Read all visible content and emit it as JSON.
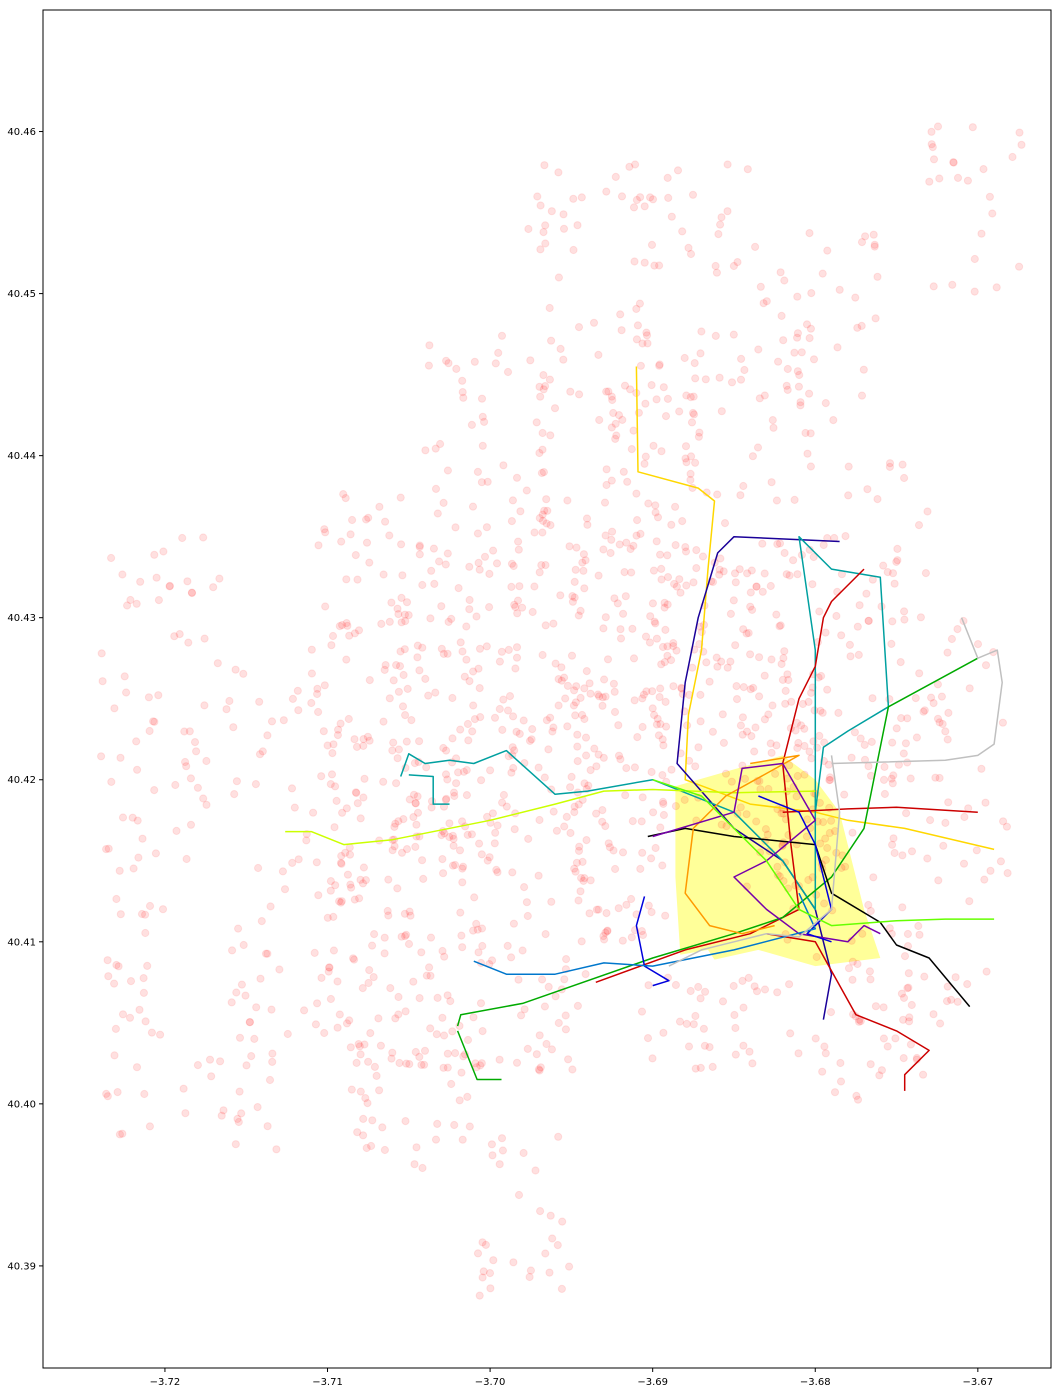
{
  "chart_data": {
    "type": "scatter",
    "title": "",
    "xlabel": "",
    "ylabel": "",
    "xlim": [
      -3.7275,
      -3.6655
    ],
    "ylim": [
      40.3837,
      40.4675
    ],
    "grid": false,
    "legend": "none",
    "x_ticks": [
      -3.72,
      -3.71,
      -3.7,
      -3.69,
      -3.68,
      -3.67
    ],
    "x_tick_labels": [
      "−3.72",
      "−3.71",
      "−3.70",
      "−3.69",
      "−3.68",
      "−3.67"
    ],
    "y_ticks": [
      40.39,
      40.4,
      40.41,
      40.42,
      40.43,
      40.44,
      40.45,
      40.46
    ],
    "y_tick_labels": [
      "40.39",
      "40.40",
      "40.41",
      "40.42",
      "40.43",
      "40.44",
      "40.45",
      "40.46"
    ],
    "point_color": "#ff0000",
    "point_opacity": 0.12,
    "highlight_area": {
      "color": "#ffff99",
      "polygon": [
        [
          -3.6886,
          40.4196
        ],
        [
          -3.682,
          40.4215
        ],
        [
          -3.68,
          40.42
        ],
        [
          -3.6785,
          40.418
        ],
        [
          -3.677,
          40.412
        ],
        [
          -3.676,
          40.409
        ],
        [
          -3.68,
          40.4085
        ],
        [
          -3.6835,
          40.4095
        ],
        [
          -3.6862,
          40.4089
        ],
        [
          -3.6866,
          40.4095
        ],
        [
          -3.6883,
          40.4092
        ],
        [
          -3.6886,
          40.414
        ]
      ]
    },
    "routes": [
      {
        "color": "#ffd700",
        "points": [
          [
            -3.691,
            40.4455
          ],
          [
            -3.6909,
            40.439
          ],
          [
            -3.6872,
            40.438
          ],
          [
            -3.6862,
            40.4372
          ],
          [
            -3.6866,
            40.433
          ],
          [
            -3.687,
            40.428
          ],
          [
            -3.6878,
            40.424
          ],
          [
            -3.688,
            40.42
          ],
          [
            -3.684,
            40.4185
          ],
          [
            -3.68,
            40.418
          ],
          [
            -3.678,
            40.4175
          ],
          [
            -3.6745,
            40.417
          ],
          [
            -3.669,
            40.4157
          ]
        ]
      },
      {
        "color": "#1a0099",
        "points": [
          [
            -3.6785,
            40.4347
          ],
          [
            -3.685,
            40.435
          ],
          [
            -3.686,
            40.434
          ],
          [
            -3.6872,
            40.43
          ],
          [
            -3.688,
            40.426
          ],
          [
            -3.6885,
            40.421
          ],
          [
            -3.685,
            40.417
          ],
          [
            -3.682,
            40.415
          ],
          [
            -3.68,
            40.412
          ],
          [
            -3.6795,
            40.41
          ],
          [
            -3.679,
            40.408
          ],
          [
            -3.6795,
            40.4052
          ]
        ]
      },
      {
        "color": "#00a0a0",
        "points": [
          [
            -3.7055,
            40.4202
          ],
          [
            -3.705,
            40.4216
          ],
          [
            -3.704,
            40.421
          ],
          [
            -3.7025,
            40.4212
          ],
          [
            -3.701,
            40.421
          ],
          [
            -3.699,
            40.4218
          ],
          [
            -3.696,
            40.4191
          ],
          [
            -3.694,
            40.4193
          ],
          [
            -3.69,
            40.42
          ],
          [
            -3.685,
            40.418
          ],
          [
            -3.682,
            40.415
          ],
          [
            -3.68,
            40.412
          ],
          [
            -3.68,
            40.428
          ],
          [
            -3.681,
            40.435
          ],
          [
            -3.679,
            40.433
          ],
          [
            -3.676,
            40.4325
          ],
          [
            -3.6755,
            40.4245
          ],
          [
            -3.678,
            40.423
          ],
          [
            -3.6795,
            40.422
          ],
          [
            -3.68,
            40.418
          ]
        ]
      },
      {
        "color": "#00a0a0",
        "points": [
          [
            -3.705,
            40.4203
          ],
          [
            -3.7035,
            40.4202
          ],
          [
            -3.7035,
            40.4185
          ],
          [
            -3.7025,
            40.4185
          ]
        ]
      },
      {
        "color": "#cc0000",
        "points": [
          [
            -3.6935,
            40.4075
          ],
          [
            -3.688,
            40.4095
          ],
          [
            -3.684,
            40.4105
          ],
          [
            -3.681,
            40.412
          ],
          [
            -3.6815,
            40.416
          ],
          [
            -3.682,
            40.421
          ],
          [
            -3.681,
            40.425
          ],
          [
            -3.68,
            40.427
          ],
          [
            -3.6795,
            40.43
          ],
          [
            -3.679,
            40.431
          ],
          [
            -3.677,
            40.433
          ]
        ]
      },
      {
        "color": "#cc0000",
        "points": [
          [
            -3.683,
            40.4105
          ],
          [
            -3.68,
            40.41
          ],
          [
            -3.6775,
            40.4055
          ],
          [
            -3.675,
            40.4045
          ],
          [
            -3.673,
            40.4033
          ],
          [
            -3.6745,
            40.4018
          ],
          [
            -3.6745,
            40.4008
          ]
        ]
      },
      {
        "color": "#cc0000",
        "points": [
          [
            -3.682,
            40.418
          ],
          [
            -3.678,
            40.4182
          ],
          [
            -3.675,
            40.4183
          ],
          [
            -3.67,
            40.418
          ]
        ]
      },
      {
        "color": "#00aa00",
        "points": [
          [
            -3.702,
            40.4048
          ],
          [
            -3.7018,
            40.4055
          ],
          [
            -3.698,
            40.4062
          ],
          [
            -3.69,
            40.409
          ],
          [
            -3.685,
            40.4105
          ],
          [
            -3.682,
            40.4115
          ],
          [
            -3.679,
            40.414
          ],
          [
            -3.677,
            40.417
          ],
          [
            -3.6755,
            40.4245
          ],
          [
            -3.67,
            40.4275
          ]
        ]
      },
      {
        "color": "#00aa00",
        "points": [
          [
            -3.702,
            40.4045
          ],
          [
            -3.7008,
            40.4015
          ],
          [
            -3.6993,
            40.4015
          ]
        ]
      },
      {
        "color": "#ccff00",
        "points": [
          [
            -3.7126,
            40.4168
          ],
          [
            -3.711,
            40.4168
          ],
          [
            -3.709,
            40.416
          ],
          [
            -3.706,
            40.4163
          ],
          [
            -3.7,
            40.4175
          ],
          [
            -3.696,
            40.4185
          ],
          [
            -3.693,
            40.4193
          ],
          [
            -3.69,
            40.4194
          ],
          [
            -3.685,
            40.4192
          ],
          [
            -3.68,
            40.4193
          ]
        ]
      },
      {
        "color": "#000000",
        "points": [
          [
            -3.6903,
            40.4165
          ],
          [
            -3.688,
            40.417
          ],
          [
            -3.685,
            40.4165
          ],
          [
            -3.68,
            40.416
          ],
          [
            -3.679,
            40.413
          ],
          [
            -3.676,
            40.4112
          ],
          [
            -3.675,
            40.4098
          ],
          [
            -3.673,
            40.409
          ],
          [
            -3.6705,
            40.406
          ]
        ]
      },
      {
        "color": "#ff9900",
        "points": [
          [
            -3.684,
            40.421
          ],
          [
            -3.681,
            40.4215
          ],
          [
            -3.6855,
            40.419
          ],
          [
            -3.6875,
            40.417
          ],
          [
            -3.688,
            40.413
          ],
          [
            -3.6865,
            40.411
          ],
          [
            -3.6845,
            40.4105
          ],
          [
            -3.6825,
            40.411
          ]
        ]
      },
      {
        "color": "#7700aa",
        "points": [
          [
            -3.69,
            40.4165
          ],
          [
            -3.685,
            40.418
          ],
          [
            -3.6845,
            40.4207
          ],
          [
            -3.682,
            40.421
          ],
          [
            -3.68,
            40.4175
          ],
          [
            -3.683,
            40.415
          ],
          [
            -3.685,
            40.414
          ],
          [
            -3.683,
            40.412
          ],
          [
            -3.681,
            40.4105
          ],
          [
            -3.678,
            40.41
          ],
          [
            -3.677,
            40.411
          ],
          [
            -3.676,
            40.4105
          ]
        ]
      },
      {
        "color": "#0000dd",
        "points": [
          [
            -3.6905,
            40.4128
          ],
          [
            -3.691,
            40.411
          ],
          [
            -3.6905,
            40.4085
          ],
          [
            -3.689,
            40.4076
          ],
          [
            -3.69,
            40.4073
          ]
        ]
      },
      {
        "color": "#0000dd",
        "points": [
          [
            -3.6835,
            40.419
          ],
          [
            -3.681,
            40.418
          ],
          [
            -3.68,
            40.416
          ],
          [
            -3.679,
            40.412
          ],
          [
            -3.6805,
            40.4105
          ],
          [
            -3.679,
            40.41
          ]
        ]
      },
      {
        "color": "#0077cc",
        "points": [
          [
            -3.701,
            40.4088
          ],
          [
            -3.699,
            40.408
          ],
          [
            -3.696,
            40.408
          ],
          [
            -3.693,
            40.4087
          ],
          [
            -3.69,
            40.4085
          ],
          [
            -3.685,
            40.4095
          ],
          [
            -3.68,
            40.4108
          ],
          [
            -3.681,
            40.413
          ]
        ]
      },
      {
        "color": "#66ff00",
        "points": [
          [
            -3.69,
            40.42
          ],
          [
            -3.687,
            40.419
          ],
          [
            -3.683,
            40.415
          ],
          [
            -3.681,
            40.412
          ],
          [
            -3.679,
            40.411
          ],
          [
            -3.675,
            40.4113
          ],
          [
            -3.672,
            40.4114
          ],
          [
            -3.669,
            40.4114
          ]
        ]
      },
      {
        "color": "#c0c0c0",
        "points": [
          [
            -3.679,
            40.4215
          ],
          [
            -3.6785,
            40.418
          ],
          [
            -3.679,
            40.412
          ],
          [
            -3.681,
            40.4103
          ],
          [
            -3.683,
            40.4105
          ],
          [
            -3.685,
            40.41
          ],
          [
            -3.687,
            40.4095
          ],
          [
            -3.689,
            40.4085
          ]
        ]
      },
      {
        "color": "#c0c0c0",
        "points": [
          [
            -3.679,
            40.421
          ],
          [
            -3.672,
            40.4212
          ],
          [
            -3.67,
            40.4215
          ],
          [
            -3.669,
            40.4222
          ],
          [
            -3.6685,
            40.426
          ],
          [
            -3.6688,
            40.428
          ],
          [
            -3.67,
            40.4275
          ],
          [
            -3.671,
            40.43
          ]
        ]
      }
    ]
  }
}
